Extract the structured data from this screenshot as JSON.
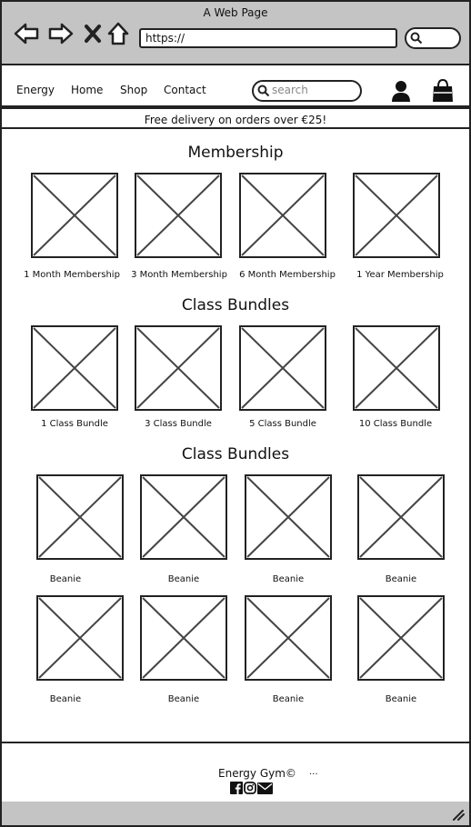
{
  "browser": {
    "window_title": "A Web Page",
    "url": "https://"
  },
  "header": {
    "brand": "Energy",
    "nav": [
      "Home",
      "Shop",
      "Contact"
    ],
    "search_placeholder": "search"
  },
  "banner": "Free delivery on orders over €25!",
  "sections": [
    {
      "title": "Membership",
      "items": [
        "1 Month Membership",
        "3 Month Membership",
        "6 Month Membership",
        "1 Year Membership"
      ]
    },
    {
      "title": "Class Bundles",
      "items": [
        "1 Class Bundle",
        "3 Class Bundle",
        "5 Class Bundle",
        "10 Class Bundle"
      ]
    },
    {
      "title": "Class Bundles",
      "items": [
        "Beanie",
        "Beanie",
        "Beanie",
        "Beanie",
        "Beanie",
        "Beanie",
        "Beanie",
        "Beanie"
      ]
    }
  ],
  "footer": {
    "copyright": "Energy Gym©",
    "ellipsis": "..."
  }
}
